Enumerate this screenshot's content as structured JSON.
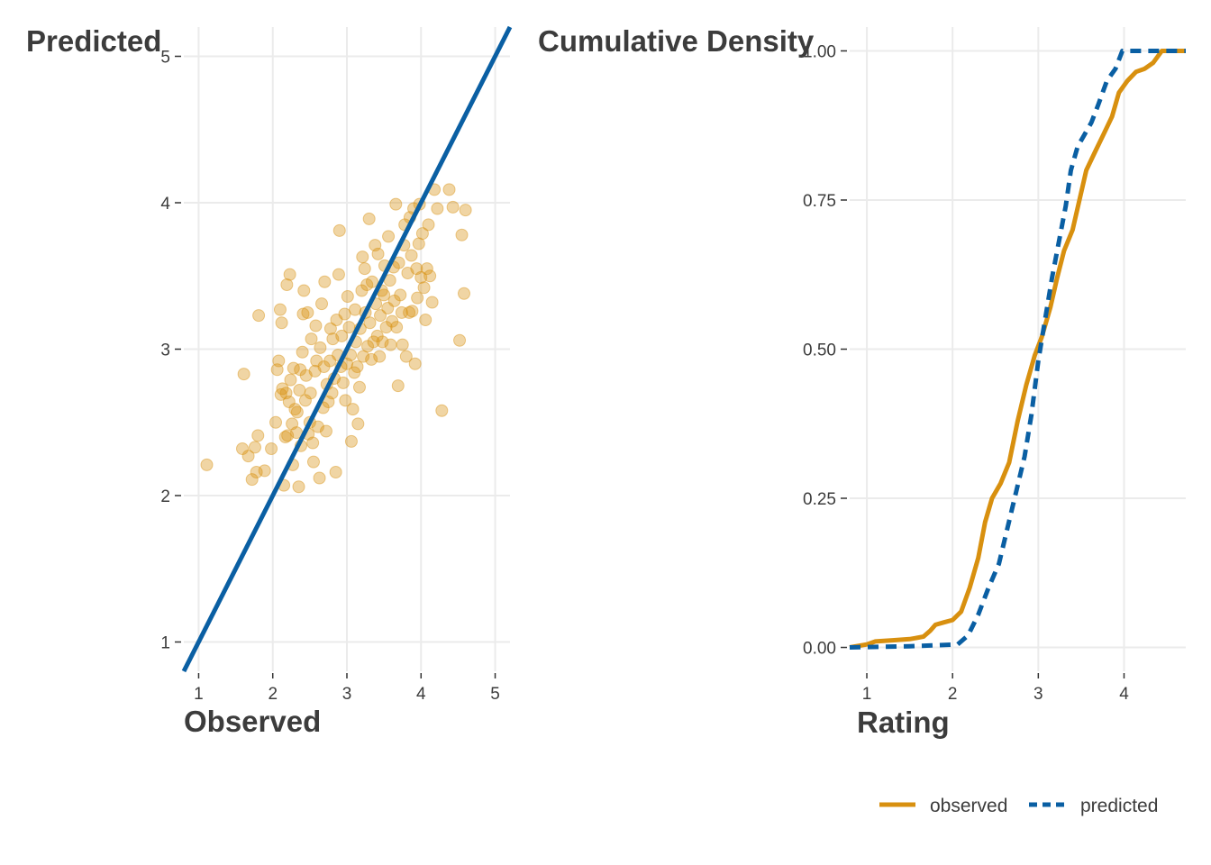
{
  "colors": {
    "observed": "#d8900f",
    "predicted": "#0a5fa3",
    "grid": "#ebebeb",
    "text": "#3c3c3c"
  },
  "chart_data": [
    {
      "type": "scatter",
      "xlabel": "Observed",
      "ylabel": "Predicted",
      "xlim": [
        0.8,
        5.2
      ],
      "ylim": [
        0.8,
        5.2
      ],
      "x_ticks": [
        "1",
        "2",
        "3",
        "4",
        "5"
      ],
      "y_ticks": [
        "1",
        "2",
        "3",
        "4",
        "5"
      ],
      "grid": true,
      "reference_line": {
        "slope": 1,
        "intercept": 0
      },
      "points": [
        [
          1.11,
          2.21
        ],
        [
          1.59,
          2.32
        ],
        [
          1.61,
          2.83
        ],
        [
          1.67,
          2.27
        ],
        [
          1.72,
          2.11
        ],
        [
          1.76,
          2.33
        ],
        [
          1.78,
          2.16
        ],
        [
          1.8,
          2.41
        ],
        [
          1.81,
          3.23
        ],
        [
          1.89,
          2.17
        ],
        [
          1.98,
          2.32
        ],
        [
          2.04,
          2.5
        ],
        [
          2.06,
          2.86
        ],
        [
          2.08,
          2.92
        ],
        [
          2.1,
          3.27
        ],
        [
          2.11,
          2.69
        ],
        [
          2.12,
          3.18
        ],
        [
          2.13,
          2.73
        ],
        [
          2.15,
          2.07
        ],
        [
          2.17,
          2.4
        ],
        [
          2.18,
          2.7
        ],
        [
          2.19,
          3.44
        ],
        [
          2.2,
          2.41
        ],
        [
          2.22,
          2.64
        ],
        [
          2.23,
          3.51
        ],
        [
          2.24,
          2.79
        ],
        [
          2.26,
          2.49
        ],
        [
          2.27,
          2.21
        ],
        [
          2.28,
          2.87
        ],
        [
          2.3,
          2.59
        ],
        [
          2.32,
          2.43
        ],
        [
          2.33,
          2.57
        ],
        [
          2.35,
          2.06
        ],
        [
          2.36,
          2.72
        ],
        [
          2.37,
          2.86
        ],
        [
          2.38,
          2.34
        ],
        [
          2.4,
          2.98
        ],
        [
          2.41,
          3.24
        ],
        [
          2.42,
          3.4
        ],
        [
          2.44,
          2.65
        ],
        [
          2.45,
          2.82
        ],
        [
          2.47,
          3.25
        ],
        [
          2.48,
          2.42
        ],
        [
          2.5,
          2.5
        ],
        [
          2.51,
          2.7
        ],
        [
          2.52,
          3.07
        ],
        [
          2.54,
          2.36
        ],
        [
          2.55,
          2.23
        ],
        [
          2.57,
          2.85
        ],
        [
          2.58,
          3.16
        ],
        [
          2.59,
          2.92
        ],
        [
          2.61,
          2.47
        ],
        [
          2.63,
          2.12
        ],
        [
          2.64,
          3.01
        ],
        [
          2.66,
          3.31
        ],
        [
          2.68,
          2.6
        ],
        [
          2.69,
          2.88
        ],
        [
          2.7,
          3.46
        ],
        [
          2.72,
          2.44
        ],
        [
          2.73,
          2.76
        ],
        [
          2.75,
          2.64
        ],
        [
          2.77,
          2.92
        ],
        [
          2.78,
          3.14
        ],
        [
          2.8,
          2.7
        ],
        [
          2.81,
          3.07
        ],
        [
          2.83,
          2.8
        ],
        [
          2.85,
          2.16
        ],
        [
          2.86,
          3.2
        ],
        [
          2.88,
          2.96
        ],
        [
          2.89,
          3.51
        ],
        [
          2.9,
          3.81
        ],
        [
          2.92,
          2.88
        ],
        [
          2.93,
          3.09
        ],
        [
          2.95,
          2.77
        ],
        [
          2.97,
          3.24
        ],
        [
          2.98,
          2.65
        ],
        [
          3.0,
          2.9
        ],
        [
          3.01,
          3.36
        ],
        [
          3.03,
          3.15
        ],
        [
          3.05,
          2.96
        ],
        [
          3.06,
          2.37
        ],
        [
          3.08,
          2.59
        ],
        [
          3.1,
          2.84
        ],
        [
          3.11,
          3.27
        ],
        [
          3.12,
          3.05
        ],
        [
          3.14,
          2.88
        ],
        [
          3.15,
          2.49
        ],
        [
          3.17,
          2.74
        ],
        [
          3.18,
          3.14
        ],
        [
          3.2,
          3.4
        ],
        [
          3.21,
          3.63
        ],
        [
          3.22,
          2.95
        ],
        [
          3.24,
          3.55
        ],
        [
          3.25,
          3.25
        ],
        [
          3.27,
          3.44
        ],
        [
          3.28,
          3.02
        ],
        [
          3.3,
          3.89
        ],
        [
          3.31,
          3.18
        ],
        [
          3.33,
          2.93
        ],
        [
          3.34,
          3.46
        ],
        [
          3.36,
          3.05
        ],
        [
          3.38,
          3.71
        ],
        [
          3.39,
          3.31
        ],
        [
          3.41,
          3.09
        ],
        [
          3.42,
          3.65
        ],
        [
          3.44,
          2.95
        ],
        [
          3.45,
          3.23
        ],
        [
          3.47,
          3.4
        ],
        [
          3.48,
          3.05
        ],
        [
          3.5,
          3.37
        ],
        [
          3.51,
          3.57
        ],
        [
          3.53,
          3.15
        ],
        [
          3.55,
          3.28
        ],
        [
          3.56,
          3.77
        ],
        [
          3.58,
          3.47
        ],
        [
          3.59,
          3.03
        ],
        [
          3.61,
          3.19
        ],
        [
          3.63,
          3.56
        ],
        [
          3.64,
          3.33
        ],
        [
          3.66,
          3.99
        ],
        [
          3.67,
          3.15
        ],
        [
          3.69,
          2.75
        ],
        [
          3.7,
          3.59
        ],
        [
          3.72,
          3.37
        ],
        [
          3.74,
          3.25
        ],
        [
          3.75,
          3.03
        ],
        [
          3.77,
          3.71
        ],
        [
          3.78,
          3.85
        ],
        [
          3.8,
          2.95
        ],
        [
          3.82,
          3.52
        ],
        [
          3.84,
          3.25
        ],
        [
          3.85,
          3.9
        ],
        [
          3.87,
          3.64
        ],
        [
          3.88,
          3.26
        ],
        [
          3.9,
          3.96
        ],
        [
          3.92,
          2.9
        ],
        [
          3.94,
          3.55
        ],
        [
          3.95,
          3.35
        ],
        [
          3.97,
          3.72
        ],
        [
          3.98,
          3.99
        ],
        [
          4.0,
          3.49
        ],
        [
          4.02,
          3.79
        ],
        [
          4.04,
          3.42
        ],
        [
          4.06,
          3.2
        ],
        [
          4.08,
          3.55
        ],
        [
          4.1,
          3.85
        ],
        [
          4.12,
          3.5
        ],
        [
          4.15,
          3.32
        ],
        [
          4.18,
          4.09
        ],
        [
          4.22,
          3.96
        ],
        [
          4.28,
          2.58
        ],
        [
          4.38,
          4.09
        ],
        [
          4.43,
          3.97
        ],
        [
          4.52,
          3.06
        ],
        [
          4.55,
          3.78
        ],
        [
          4.58,
          3.38
        ],
        [
          4.6,
          3.95
        ]
      ]
    },
    {
      "type": "line",
      "xlabel": "Rating",
      "ylabel": "Cumulative Density",
      "xlim": [
        0.8,
        4.72
      ],
      "ylim": [
        -0.04,
        1.04
      ],
      "x_ticks": [
        "1",
        "2",
        "3",
        "4"
      ],
      "y_ticks": [
        "0.00",
        "0.25",
        "0.50",
        "0.75",
        "1.00"
      ],
      "grid": true,
      "legend_position": "bottom-right",
      "series": [
        {
          "name": "observed",
          "line": "solid",
          "points": [
            [
              0.8,
              0.0
            ],
            [
              1.0,
              0.005
            ],
            [
              1.1,
              0.01
            ],
            [
              1.3,
              0.012
            ],
            [
              1.5,
              0.014
            ],
            [
              1.66,
              0.018
            ],
            [
              1.74,
              0.028
            ],
            [
              1.8,
              0.038
            ],
            [
              1.9,
              0.042
            ],
            [
              2.0,
              0.046
            ],
            [
              2.1,
              0.06
            ],
            [
              2.2,
              0.1
            ],
            [
              2.3,
              0.15
            ],
            [
              2.38,
              0.21
            ],
            [
              2.46,
              0.25
            ],
            [
              2.56,
              0.275
            ],
            [
              2.66,
              0.31
            ],
            [
              2.76,
              0.38
            ],
            [
              2.86,
              0.44
            ],
            [
              2.96,
              0.49
            ],
            [
              3.04,
              0.52
            ],
            [
              3.14,
              0.57
            ],
            [
              3.22,
              0.62
            ],
            [
              3.3,
              0.665
            ],
            [
              3.4,
              0.7
            ],
            [
              3.48,
              0.75
            ],
            [
              3.56,
              0.8
            ],
            [
              3.66,
              0.83
            ],
            [
              3.76,
              0.86
            ],
            [
              3.86,
              0.89
            ],
            [
              3.94,
              0.93
            ],
            [
              4.04,
              0.95
            ],
            [
              4.14,
              0.965
            ],
            [
              4.24,
              0.97
            ],
            [
              4.34,
              0.98
            ],
            [
              4.44,
              1.0
            ],
            [
              4.72,
              1.0
            ]
          ]
        },
        {
          "name": "predicted",
          "line": "dashed",
          "points": [
            [
              0.8,
              0.0
            ],
            [
              1.5,
              0.002
            ],
            [
              2.06,
              0.005
            ],
            [
              2.18,
              0.02
            ],
            [
              2.3,
              0.055
            ],
            [
              2.42,
              0.1
            ],
            [
              2.54,
              0.14
            ],
            [
              2.64,
              0.2
            ],
            [
              2.74,
              0.26
            ],
            [
              2.84,
              0.32
            ],
            [
              2.92,
              0.39
            ],
            [
              3.0,
              0.48
            ],
            [
              3.08,
              0.55
            ],
            [
              3.16,
              0.62
            ],
            [
              3.24,
              0.68
            ],
            [
              3.32,
              0.74
            ],
            [
              3.38,
              0.8
            ],
            [
              3.46,
              0.84
            ],
            [
              3.54,
              0.86
            ],
            [
              3.62,
              0.88
            ],
            [
              3.7,
              0.91
            ],
            [
              3.8,
              0.95
            ],
            [
              3.9,
              0.97
            ],
            [
              3.98,
              1.0
            ],
            [
              4.72,
              1.0
            ]
          ]
        }
      ]
    }
  ]
}
